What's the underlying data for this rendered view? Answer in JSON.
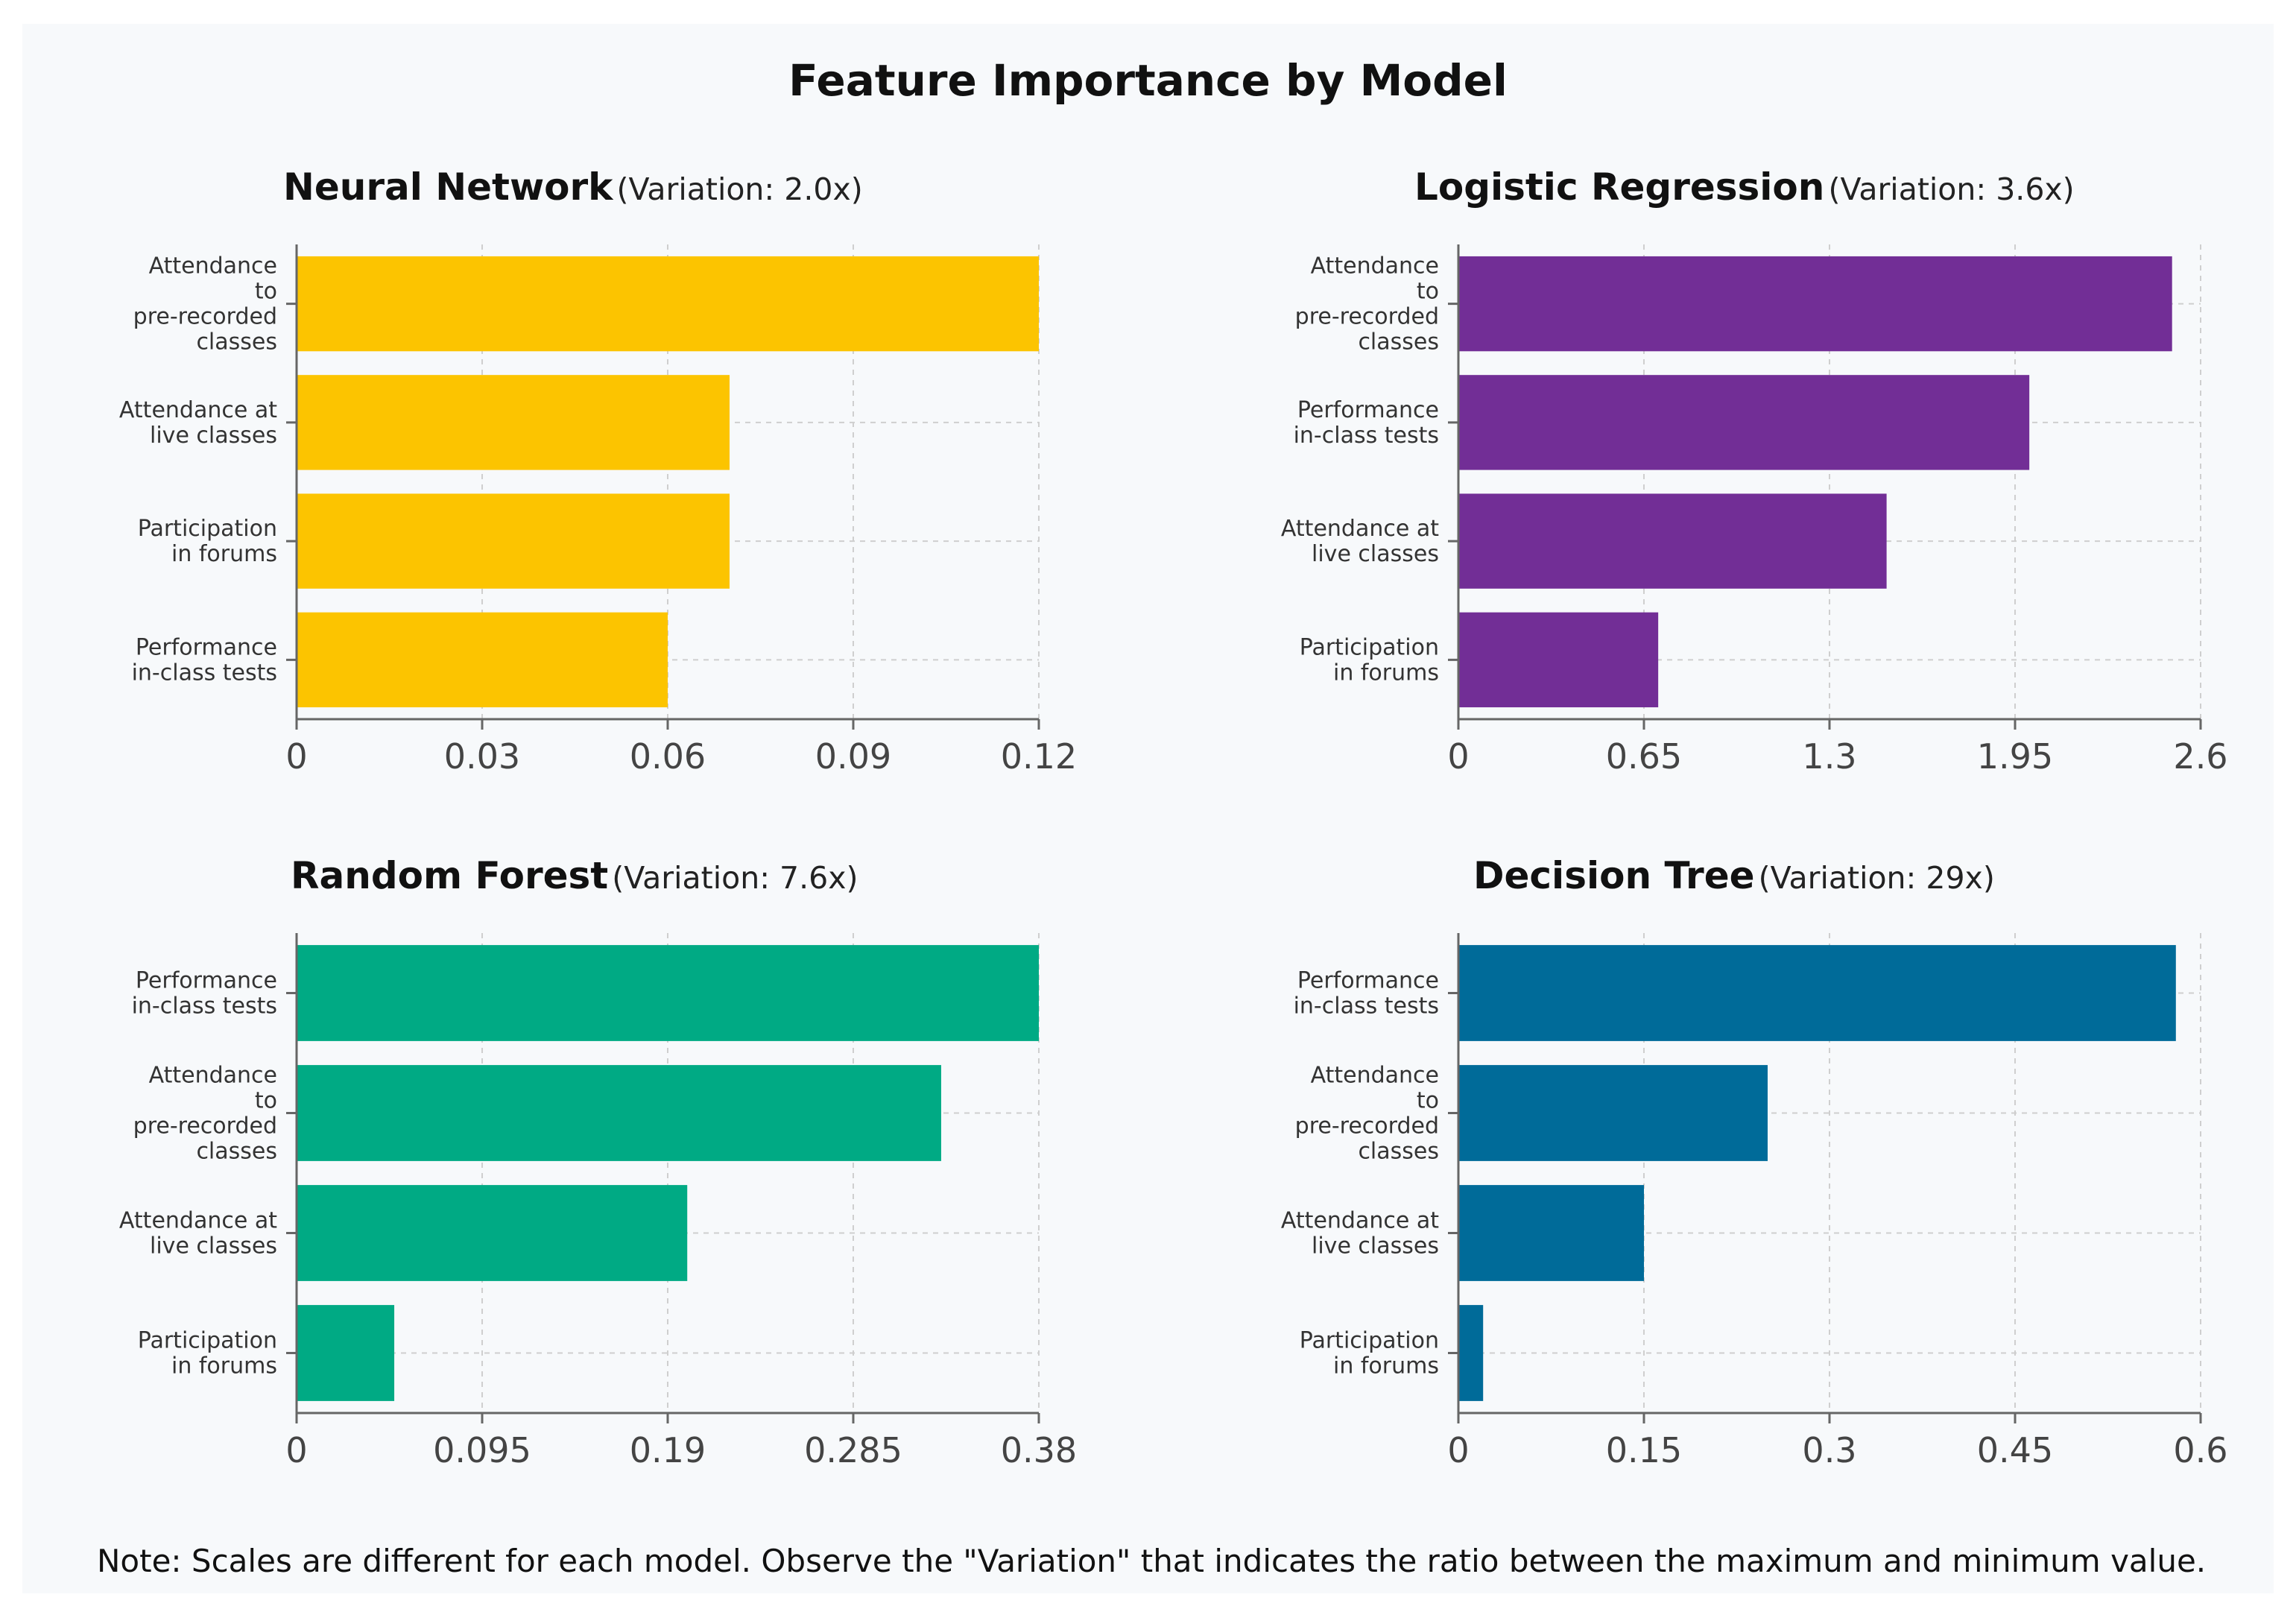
{
  "title": "Feature Importance by Model",
  "note": "Note: Scales are different for each model. Observe the \"Variation\" that indicates the ratio between the maximum and minimum value.",
  "chart_data": [
    {
      "type": "bar",
      "orientation": "horizontal",
      "name": "Neural Network",
      "variation": "(Variation: 2.0x)",
      "color": "#FCC400",
      "categories": [
        [
          "Attendance",
          "to",
          "pre-recorded",
          "classes"
        ],
        [
          "Attendance at",
          "live classes"
        ],
        [
          "Participation",
          "in forums"
        ],
        [
          "Performance",
          "in-class tests"
        ]
      ],
      "values": [
        0.12,
        0.07,
        0.07,
        0.06
      ],
      "xlim": [
        0,
        0.12
      ],
      "ticks": [
        0,
        0.03,
        0.06,
        0.09,
        0.12
      ],
      "tick_labels": [
        "0",
        "0.03",
        "0.06",
        "0.09",
        "0.12"
      ]
    },
    {
      "type": "bar",
      "orientation": "horizontal",
      "name": "Logistic Regression",
      "variation": "(Variation: 3.6x)",
      "color": "#722E96",
      "categories": [
        [
          "Attendance",
          "to",
          "pre-recorded",
          "classes"
        ],
        [
          "Performance",
          "in-class tests"
        ],
        [
          "Attendance at",
          "live classes"
        ],
        [
          "Participation",
          "in forums"
        ]
      ],
      "values": [
        2.5,
        2.0,
        1.5,
        0.7
      ],
      "xlim": [
        0,
        2.6
      ],
      "ticks": [
        0,
        0.65,
        1.3,
        1.95,
        2.6
      ],
      "tick_labels": [
        "0",
        "0.65",
        "1.3",
        "1.95",
        "2.6"
      ]
    },
    {
      "type": "bar",
      "orientation": "horizontal",
      "name": "Random Forest",
      "variation": "(Variation: 7.6x)",
      "color": "#00AA84",
      "categories": [
        [
          "Performance",
          "in-class tests"
        ],
        [
          "Attendance",
          "to",
          "pre-recorded",
          "classes"
        ],
        [
          "Attendance at",
          "live classes"
        ],
        [
          "Participation",
          "in forums"
        ]
      ],
      "values": [
        0.38,
        0.33,
        0.2,
        0.05
      ],
      "xlim": [
        0,
        0.38
      ],
      "ticks": [
        0,
        0.095,
        0.19,
        0.285,
        0.38
      ],
      "tick_labels": [
        "0",
        "0.095",
        "0.19",
        "0.285",
        "0.38"
      ]
    },
    {
      "type": "bar",
      "orientation": "horizontal",
      "name": "Decision Tree",
      "variation": "(Variation: 29x)",
      "color": "#006B99",
      "categories": [
        [
          "Performance",
          "in-class tests"
        ],
        [
          "Attendance",
          "to",
          "pre-recorded",
          "classes"
        ],
        [
          "Attendance at",
          "live classes"
        ],
        [
          "Participation",
          "in forums"
        ]
      ],
      "values": [
        0.58,
        0.25,
        0.15,
        0.02
      ],
      "xlim": [
        0,
        0.6
      ],
      "ticks": [
        0,
        0.15,
        0.3,
        0.45,
        0.6
      ],
      "tick_labels": [
        "0",
        "0.15",
        "0.3",
        "0.45",
        "0.6"
      ]
    }
  ]
}
